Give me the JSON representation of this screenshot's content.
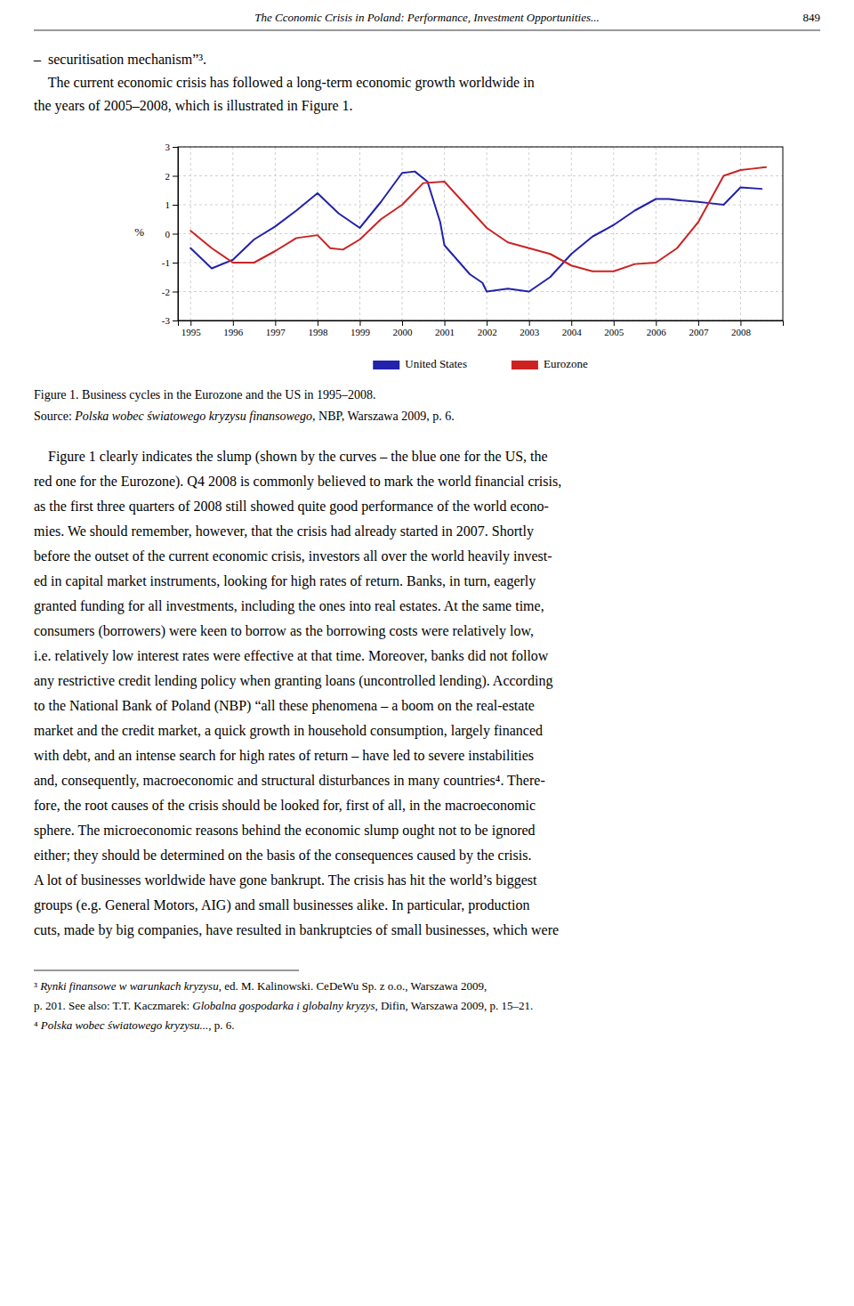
{
  "chart_data": {
    "type": "line",
    "title": "Figure 1. Business cycles in the Eurozone and the US in 1995–2008.",
    "y_label": "%",
    "xlim": [
      1994.7,
      2009.0
    ],
    "ylim": [
      -3,
      3
    ],
    "xticks": [
      1995,
      1996,
      1997,
      1998,
      1999,
      2000,
      2001,
      2002,
      2003,
      2004,
      2005,
      2006,
      2007,
      2008
    ],
    "yticks": [
      -3,
      -2,
      -1,
      0,
      1,
      2,
      3
    ],
    "grid": true,
    "legend": "bottom",
    "series": [
      {
        "name": "United States",
        "color": "#2222AA",
        "x": [
          1995,
          1995.5,
          1996,
          1996.5,
          1997,
          1997.5,
          1998,
          1998.5,
          1999,
          1999.5,
          2000,
          2000.3,
          2000.6,
          2000.9,
          2001,
          2001.3,
          2001.6,
          2001.9,
          2002,
          2002.5,
          2003,
          2003.5,
          2004,
          2004.5,
          2005,
          2005.5,
          2006,
          2006.3,
          2006.6,
          2007,
          2007.3,
          2007.6,
          2008,
          2008.5
        ],
        "values": [
          -0.5,
          -1.2,
          -0.9,
          -0.2,
          0.25,
          0.8,
          1.4,
          0.7,
          0.2,
          1.1,
          2.1,
          2.15,
          1.8,
          0.4,
          -0.4,
          -0.9,
          -1.4,
          -1.7,
          -2.0,
          -1.9,
          -2.0,
          -1.5,
          -0.7,
          -0.1,
          0.3,
          0.8,
          1.2,
          1.2,
          1.15,
          1.1,
          1.05,
          1.0,
          1.6,
          1.55
        ]
      },
      {
        "name": "Eurozone",
        "color": "#CC2222",
        "x": [
          1995,
          1995.5,
          1996,
          1996.5,
          1997,
          1997.5,
          1998,
          1998.3,
          1998.6,
          1999,
          1999.5,
          2000,
          2000.5,
          2001,
          2001.5,
          2002,
          2002.5,
          2003,
          2003.5,
          2004,
          2004.5,
          2005,
          2005.5,
          2006,
          2006.5,
          2007,
          2007.3,
          2007.6,
          2008,
          2008.3,
          2008.6
        ],
        "values": [
          0.1,
          -0.5,
          -1.0,
          -1.0,
          -0.6,
          -0.15,
          -0.05,
          -0.5,
          -0.55,
          -0.2,
          0.5,
          1.0,
          1.75,
          1.8,
          1.0,
          0.2,
          -0.3,
          -0.5,
          -0.7,
          -1.1,
          -1.3,
          -1.3,
          -1.05,
          -1.0,
          -0.5,
          0.4,
          1.2,
          2.0,
          2.2,
          2.25,
          2.3
        ]
      }
    ]
  },
  "page": {
    "header_title": "The Cconomic Crisis in Poland: Performance, Investment Opportunities...",
    "header_page": "849",
    "top_text": [
      "–  securitisation mechanism”³.",
      "    The current economic crisis has followed a long-term economic growth worldwide in",
      "the years of 2005–2008, which is illustrated in Figure 1."
    ],
    "source": [
      {
        "text": "Source: ",
        "italic": false
      },
      {
        "text": "Polska wobec światowego kryzysu finansowego",
        "italic": true
      },
      {
        "text": ", NBP, Warszawa 2009, p. 6.",
        "italic": false
      }
    ],
    "body": [
      "    Figure 1 clearly indicates the slump (shown by the curves – the blue one for the US, the",
      "red one for the Eurozone). Q4 2008 is commonly believed to mark the world financial crisis,",
      "as the first three quarters of 2008 still showed quite good performance of the world econo-",
      "mies. We should remember, however, that the crisis had already started in 2007. Shortly",
      "before the outset of the current economic crisis, investors all over the world heavily invest-",
      "ed in capital market instruments, looking for high rates of return. Banks, in turn, eagerly",
      "granted funding for all investments, including the ones into real estates. At the same time,",
      "consumers (borrowers) were keen to borrow as the borrowing costs were relatively low,",
      "i.e. relatively low interest rates were effective at that time. Moreover, banks did not follow",
      "any restrictive credit lending policy when granting loans (uncontrolled lending). According",
      "to the National Bank of Poland (NBP) “all these phenomena – a boom on the real-estate",
      "market and the credit market, a quick growth in household consumption, largely financed",
      "with debt, and an intense search for high rates of return – have led to severe instabilities",
      "and, consequently, macroeconomic and structural disturbances in many countries⁴. There-",
      "fore, the root causes of the crisis should be looked for, first of all, in the macroeconomic",
      "sphere. The microeconomic reasons behind the economic slump ought not to be ignored",
      "either; they should be determined on the basis of the consequences caused by the crisis.",
      "A lot of businesses worldwide have gone bankrupt. The crisis has hit the world’s biggest",
      "groups (e.g. General Motors, AIG) and small businesses alike. In particular, production",
      "cuts, made by big companies, have resulted in bankruptcies of small businesses, which were"
    ],
    "footnotes": [
      [
        {
          "text": "³ ",
          "italic": false
        },
        {
          "text": "Rynki finansowe w warunkach kryzysu",
          "italic": true
        },
        {
          "text": ", ed. M. Kalinowski. CeDeWu Sp. z o.o., Warszawa 2009,",
          "italic": false
        }
      ],
      [
        {
          "text": "p. 201. See also: T.T. Kaczmarek: ",
          "italic": false
        },
        {
          "text": "Globalna gospodarka i globalny kryzys",
          "italic": true
        },
        {
          "text": ", Difin, Warszawa 2009, p. 15–21.",
          "italic": false
        }
      ],
      [
        {
          "text": "⁴ ",
          "italic": false
        },
        {
          "text": "Polska wobec światowego kryzysu...",
          "italic": true
        },
        {
          "text": ", p. 6.",
          "italic": false
        }
      ]
    ]
  }
}
